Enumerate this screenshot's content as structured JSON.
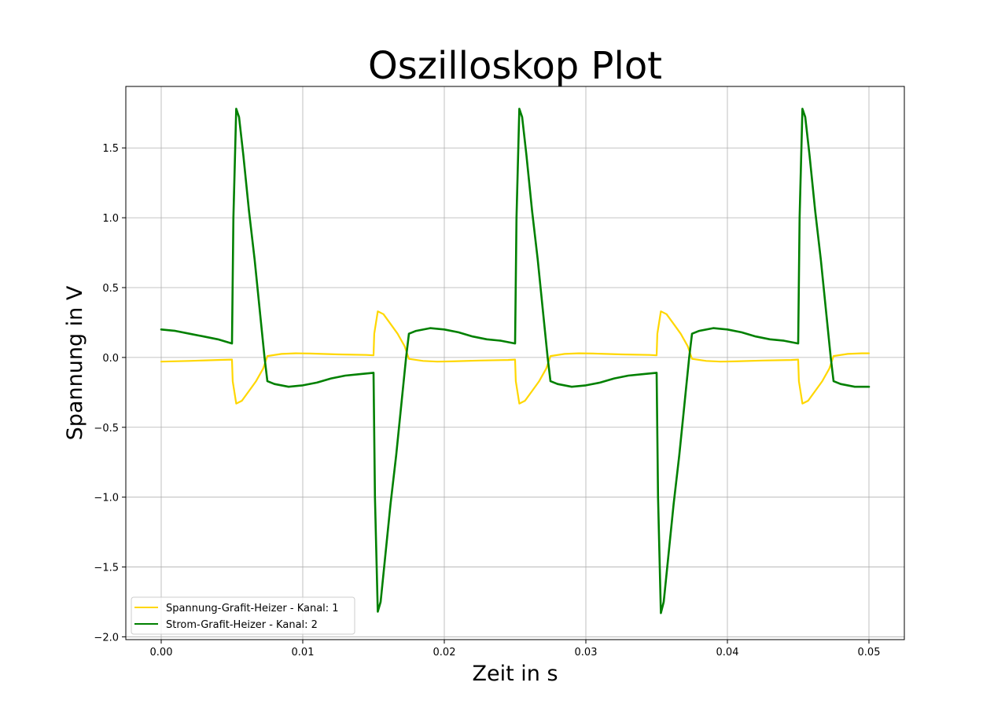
{
  "chart_data": {
    "type": "line",
    "title": "Oszilloskop Plot",
    "xlabel": "Zeit in s",
    "ylabel": "Spannung in V",
    "xlim": [
      -0.0025,
      0.0525
    ],
    "ylim": [
      -2.02,
      1.94
    ],
    "grid": true,
    "legend_position": "lower-left",
    "x_ticks": [
      0.0,
      0.01,
      0.02,
      0.03,
      0.04,
      0.05
    ],
    "x_tick_labels": [
      "0.00",
      "0.01",
      "0.02",
      "0.03",
      "0.04",
      "0.05"
    ],
    "y_ticks": [
      -2.0,
      -1.5,
      -1.0,
      -0.5,
      0.0,
      0.5,
      1.0,
      1.5
    ],
    "y_tick_labels": [
      "−2.0",
      "−1.5",
      "−1.0",
      "−0.5",
      "0.0",
      "0.5",
      "1.0",
      "1.5"
    ],
    "series": [
      {
        "name": "Spannung-Grafit-Heizer - Kanal: 1",
        "color": "#FFD700",
        "x": [
          0.0,
          0.002,
          0.004,
          0.005,
          0.00505,
          0.0053,
          0.0057,
          0.0062,
          0.0067,
          0.0072,
          0.0075,
          0.0085,
          0.0095,
          0.0105,
          0.0125,
          0.0145,
          0.015,
          0.01505,
          0.0153,
          0.0157,
          0.0162,
          0.0167,
          0.0172,
          0.0175,
          0.0185,
          0.0195,
          0.0205,
          0.0225,
          0.0245,
          0.025,
          0.02505,
          0.0253,
          0.0257,
          0.0262,
          0.0267,
          0.0272,
          0.0275,
          0.0285,
          0.0295,
          0.0305,
          0.0325,
          0.0345,
          0.035,
          0.03505,
          0.0353,
          0.0357,
          0.0362,
          0.0367,
          0.0372,
          0.0375,
          0.0385,
          0.0395,
          0.0405,
          0.0425,
          0.0445,
          0.045,
          0.04505,
          0.0453,
          0.0457,
          0.0462,
          0.0467,
          0.0472,
          0.0475,
          0.0485,
          0.0495,
          0.05
        ],
        "y": [
          -0.03,
          -0.025,
          -0.018,
          -0.015,
          -0.17,
          -0.33,
          -0.31,
          -0.24,
          -0.17,
          -0.08,
          0.01,
          0.025,
          0.03,
          0.028,
          0.022,
          0.018,
          0.015,
          0.17,
          0.33,
          0.31,
          0.24,
          0.17,
          0.08,
          -0.01,
          -0.025,
          -0.03,
          -0.028,
          -0.022,
          -0.018,
          -0.015,
          -0.17,
          -0.33,
          -0.31,
          -0.24,
          -0.17,
          -0.08,
          0.01,
          0.025,
          0.03,
          0.028,
          0.022,
          0.018,
          0.015,
          0.17,
          0.33,
          0.31,
          0.24,
          0.17,
          0.08,
          -0.01,
          -0.025,
          -0.03,
          -0.028,
          -0.022,
          -0.018,
          -0.015,
          -0.17,
          -0.33,
          -0.31,
          -0.24,
          -0.17,
          -0.08,
          0.01,
          0.025,
          0.03,
          0.03
        ]
      },
      {
        "name": "Strom-Grafit-Heizer - Kanal: 2",
        "color": "#008000",
        "x": [
          0.0,
          0.001,
          0.002,
          0.003,
          0.004,
          0.005,
          0.0051,
          0.0053,
          0.0055,
          0.0058,
          0.0062,
          0.0066,
          0.007,
          0.0073,
          0.0075,
          0.008,
          0.009,
          0.01,
          0.011,
          0.012,
          0.013,
          0.014,
          0.015,
          0.0151,
          0.0153,
          0.0155,
          0.0158,
          0.0162,
          0.0166,
          0.017,
          0.0173,
          0.0175,
          0.018,
          0.019,
          0.02,
          0.021,
          0.022,
          0.023,
          0.024,
          0.025,
          0.0251,
          0.0253,
          0.0255,
          0.0258,
          0.0262,
          0.0266,
          0.027,
          0.0273,
          0.0275,
          0.028,
          0.029,
          0.03,
          0.031,
          0.032,
          0.033,
          0.034,
          0.035,
          0.0351,
          0.0353,
          0.0355,
          0.0358,
          0.0362,
          0.0366,
          0.037,
          0.0373,
          0.0375,
          0.038,
          0.039,
          0.04,
          0.041,
          0.042,
          0.043,
          0.044,
          0.045,
          0.0451,
          0.0453,
          0.0455,
          0.0458,
          0.0462,
          0.0466,
          0.047,
          0.0473,
          0.0475,
          0.048,
          0.049,
          0.05
        ],
        "y": [
          0.2,
          0.19,
          0.17,
          0.15,
          0.13,
          0.1,
          1.0,
          1.78,
          1.72,
          1.45,
          1.05,
          0.7,
          0.3,
          0.0,
          -0.17,
          -0.19,
          -0.21,
          -0.2,
          -0.18,
          -0.15,
          -0.13,
          -0.12,
          -0.11,
          -1.0,
          -1.82,
          -1.75,
          -1.45,
          -1.05,
          -0.7,
          -0.3,
          0.0,
          0.17,
          0.19,
          0.21,
          0.2,
          0.18,
          0.15,
          0.13,
          0.12,
          0.1,
          1.0,
          1.78,
          1.72,
          1.45,
          1.05,
          0.7,
          0.3,
          0.0,
          -0.17,
          -0.19,
          -0.21,
          -0.2,
          -0.18,
          -0.15,
          -0.13,
          -0.12,
          -0.11,
          -1.0,
          -1.83,
          -1.75,
          -1.45,
          -1.05,
          -0.7,
          -0.3,
          0.0,
          0.17,
          0.19,
          0.21,
          0.2,
          0.18,
          0.15,
          0.13,
          0.12,
          0.1,
          1.0,
          1.78,
          1.72,
          1.45,
          1.05,
          0.7,
          0.3,
          0.0,
          -0.17,
          -0.19,
          -0.21,
          -0.21
        ]
      }
    ]
  }
}
